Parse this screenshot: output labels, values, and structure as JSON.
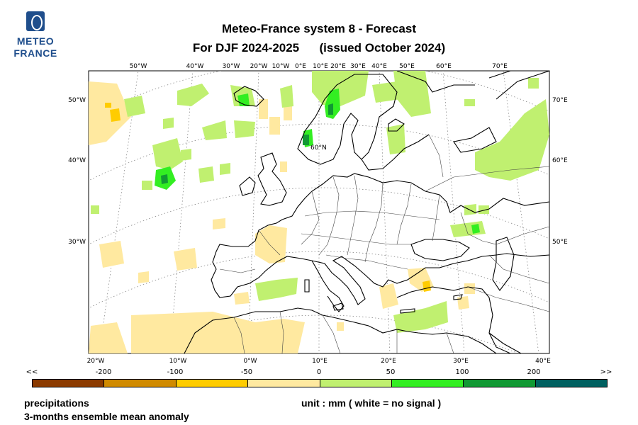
{
  "header": {
    "logo_line1": "METEO",
    "logo_line2": "FRANCE",
    "title_line1": "Meteo-France system 8  -  Forecast",
    "title_line2a": "For DJF 2024-2025",
    "title_line2b": "(issued October 2024)"
  },
  "map": {
    "top_lon_labels": [
      "50°W",
      "40°W",
      "30°W",
      "20°W",
      "10°W",
      "0°E",
      "10°E",
      "20°E",
      "30°E",
      "40°E",
      "50°E",
      "60°E",
      "70°E"
    ],
    "bottom_lon_labels": [
      "20°W",
      "10°W",
      "0°W",
      "10°E",
      "20°E",
      "30°E",
      "40°E"
    ],
    "left_lat_labels": [
      "50°W",
      "40°W",
      "30°W"
    ],
    "right_lat_labels": [
      "70°E",
      "60°E",
      "50°E"
    ],
    "inner_label": "60°N",
    "colors": {
      "strong_dry": "#8b3a00",
      "dry_2": "#d08a00",
      "dry_1": "#ffcc00",
      "light_dry": "#ffe9a0",
      "light_wet": "#c0f070",
      "wet_1": "#33ee22",
      "wet_2": "#119933",
      "strong_wet": "#006060"
    }
  },
  "legend": {
    "left_arrow": "<<",
    "right_arrow": ">>",
    "ticks": [
      "-200",
      "-100",
      "-50",
      "0",
      "50",
      "100",
      "200"
    ],
    "colors": [
      "#8b3a00",
      "#d08a00",
      "#ffcc00",
      "#ffe9a0",
      "#c0f070",
      "#33ee22",
      "#119933",
      "#006060"
    ]
  },
  "footer": {
    "variable": "precipitations",
    "description": "3-months ensemble mean anomaly",
    "unit": "unit : mm  ( white = no signal )"
  }
}
